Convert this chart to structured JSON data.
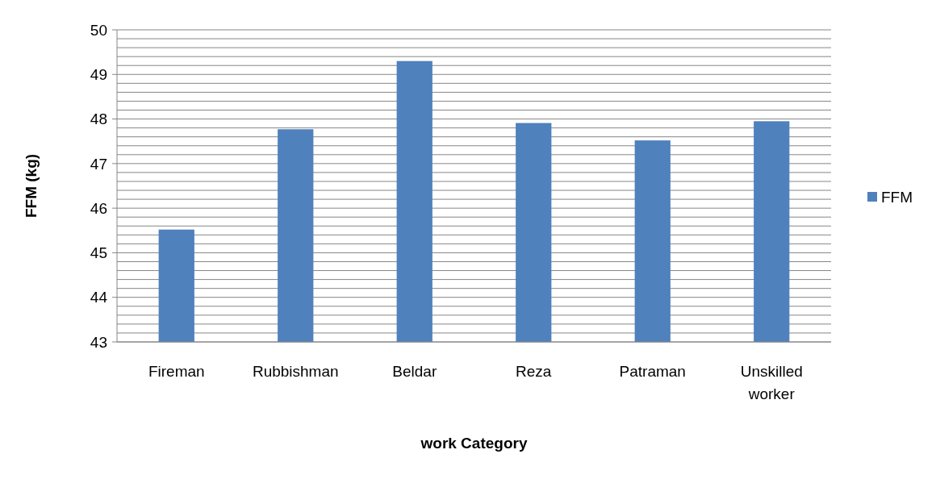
{
  "chart_data": {
    "type": "bar",
    "xlabel": "work Category",
    "ylabel": "FFM (kg)",
    "categories": [
      "Fireman",
      "Rubbishman",
      "Beldar",
      "Reza",
      "Patraman",
      "Unskilled worker"
    ],
    "series": [
      {
        "name": "FFM",
        "color": "#4f81bd",
        "values": [
          45.52,
          47.77,
          49.3,
          47.91,
          47.52,
          47.95
        ]
      }
    ],
    "ylim": [
      43,
      50
    ],
    "yticks": [
      43,
      {
        "value": 43.2,
        "label": null
      },
      {
        "value": 43.4,
        "label": null
      },
      {
        "value": 43.6,
        "label": null
      },
      {
        "value": 43.8,
        "label": null
      },
      44,
      {
        "value": 44.2,
        "label": null
      },
      {
        "value": 44.4,
        "label": null
      },
      {
        "value": 44.6,
        "label": null
      },
      {
        "value": 44.8,
        "label": null
      },
      45,
      {
        "value": 45.2,
        "label": null
      },
      {
        "value": 45.4,
        "label": null
      },
      {
        "value": 45.6,
        "label": null
      },
      {
        "value": 45.8,
        "label": null
      },
      46,
      {
        "value": 46.2,
        "label": null
      },
      {
        "value": 46.4,
        "label": null
      },
      {
        "value": 46.6,
        "label": null
      },
      {
        "value": 46.8,
        "label": null
      },
      47,
      {
        "value": 47.2,
        "label": null
      },
      {
        "value": 47.4,
        "label": null
      },
      {
        "value": 47.6,
        "label": null
      },
      {
        "value": 47.8,
        "label": null
      },
      48,
      {
        "value": 48.2,
        "label": null
      },
      {
        "value": 48.4,
        "label": null
      },
      {
        "value": 48.6,
        "label": null
      },
      {
        "value": 48.8,
        "label": null
      },
      49,
      {
        "value": 49.2,
        "label": null
      },
      {
        "value": 49.4,
        "label": null
      },
      {
        "value": 49.6,
        "label": null
      },
      {
        "value": 49.8,
        "label": null
      },
      50
    ],
    "grid": true,
    "legend": "right"
  }
}
